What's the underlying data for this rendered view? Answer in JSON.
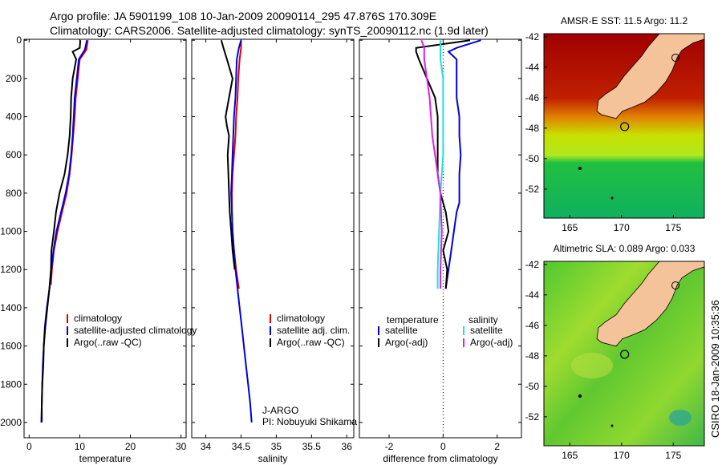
{
  "header": {
    "line1": "Argo profile: JA 5901199_108 10-Jan-2009 20090114_295 47.876S 170.309E",
    "line2": "Climatology: CARS2006. Satellite-adjusted climatology: synTS_20090112.nc (1.9d later)"
  },
  "side_label": "CSIRO 18-Jan-2009 10:35:36",
  "colors": {
    "red": "#e00000",
    "blue": "#0000e0",
    "black": "#000000",
    "cyan": "#20e0e0",
    "magenta": "#e020e0",
    "land": "#f5c39a"
  },
  "chart_data": [
    {
      "type": "line",
      "id": "temperature",
      "xlabel": "temperature",
      "xlim": [
        -1,
        31
      ],
      "xticks": [
        0,
        10,
        20,
        30
      ],
      "ylim": [
        2080,
        -5
      ],
      "yticks": [
        0,
        200,
        400,
        600,
        800,
        1000,
        1200,
        1400,
        1600,
        1800,
        2000
      ],
      "legend": [
        "climatology",
        "satellite-adjusted climatology",
        "Argo(..raw -QC)"
      ],
      "series": [
        {
          "name": "climatology",
          "color": "red",
          "points": [
            [
              11.6,
              0
            ],
            [
              11.3,
              50
            ],
            [
              10,
              100
            ],
            [
              9.6,
              200
            ],
            [
              9.2,
              300
            ],
            [
              9,
              400
            ],
            [
              8.7,
              500
            ],
            [
              8.4,
              600
            ],
            [
              8,
              700
            ],
            [
              7.4,
              800
            ],
            [
              6.5,
              900
            ],
            [
              5.6,
              1000
            ],
            [
              4.9,
              1100
            ],
            [
              4.5,
              1200
            ],
            [
              4.3,
              1280
            ]
          ]
        },
        {
          "name": "satellite-adjusted climatology",
          "color": "blue",
          "points": [
            [
              11.4,
              0
            ],
            [
              11,
              50
            ],
            [
              9.8,
              100
            ],
            [
              9.4,
              200
            ],
            [
              9,
              300
            ],
            [
              8.8,
              400
            ],
            [
              8.6,
              500
            ],
            [
              8.3,
              600
            ],
            [
              7.9,
              700
            ],
            [
              7.2,
              800
            ],
            [
              6.3,
              900
            ],
            [
              5.4,
              1000
            ],
            [
              4.8,
              1100
            ],
            [
              4.4,
              1200
            ],
            [
              4,
              1300
            ],
            [
              3.5,
              1400
            ],
            [
              3.1,
              1500
            ],
            [
              2.9,
              1600
            ],
            [
              2.7,
              1700
            ],
            [
              2.6,
              1800
            ],
            [
              2.5,
              1900
            ],
            [
              2.4,
              2000
            ]
          ]
        },
        {
          "name": "Argo(..raw -QC)",
          "color": "black",
          "points": [
            [
              10.1,
              0
            ],
            [
              10,
              40
            ],
            [
              8.6,
              60
            ],
            [
              9.3,
              100
            ],
            [
              8.6,
              200
            ],
            [
              8.3,
              300
            ],
            [
              8.2,
              400
            ],
            [
              8,
              500
            ],
            [
              7.6,
              600
            ],
            [
              7,
              700
            ],
            [
              6,
              800
            ],
            [
              5.3,
              900
            ],
            [
              4.9,
              1000
            ],
            [
              4.4,
              1100
            ],
            [
              4.3,
              1200
            ],
            [
              4,
              1300
            ],
            [
              3.6,
              1400
            ],
            [
              3.2,
              1500
            ],
            [
              2.9,
              1600
            ],
            [
              2.8,
              1700
            ],
            [
              2.6,
              1800
            ],
            [
              2.5,
              1900
            ],
            [
              2.5,
              2000
            ]
          ]
        }
      ]
    },
    {
      "type": "line",
      "id": "salinity",
      "xlabel": "salinity",
      "xlim": [
        33.8,
        36.1
      ],
      "xticks": [
        34,
        34.5,
        35,
        35.5,
        36
      ],
      "ylim": [
        2080,
        -5
      ],
      "yticks": [
        0,
        200,
        400,
        600,
        800,
        1000,
        1200,
        1400,
        1600,
        1800,
        2000
      ],
      "legend": [
        "climatology",
        "satellite adj. clim.",
        "Argo(..raw -QC)"
      ],
      "annotation": [
        "J-ARGO",
        "PI: Nobuyuki Shikama"
      ],
      "series": [
        {
          "name": "climatology",
          "color": "red",
          "points": [
            [
              34.5,
              0
            ],
            [
              34.5,
              40
            ],
            [
              34.48,
              100
            ],
            [
              34.46,
              200
            ],
            [
              34.45,
              300
            ],
            [
              34.43,
              400
            ],
            [
              34.42,
              500
            ],
            [
              34.4,
              600
            ],
            [
              34.38,
              700
            ],
            [
              34.37,
              800
            ],
            [
              34.37,
              900
            ],
            [
              34.38,
              1000
            ],
            [
              34.4,
              1100
            ],
            [
              34.43,
              1200
            ],
            [
              34.47,
              1300
            ]
          ]
        },
        {
          "name": "satellite adj. clim.",
          "color": "blue",
          "points": [
            [
              34.5,
              0
            ],
            [
              34.47,
              40
            ],
            [
              34.44,
              100
            ],
            [
              34.43,
              200
            ],
            [
              34.42,
              300
            ],
            [
              34.4,
              400
            ],
            [
              34.39,
              500
            ],
            [
              34.38,
              600
            ],
            [
              34.37,
              700
            ],
            [
              34.36,
              800
            ],
            [
              34.37,
              900
            ],
            [
              34.38,
              1000
            ],
            [
              34.4,
              1100
            ],
            [
              34.42,
              1200
            ],
            [
              34.45,
              1300
            ],
            [
              34.48,
              1400
            ],
            [
              34.51,
              1500
            ],
            [
              34.54,
              1600
            ],
            [
              34.57,
              1700
            ],
            [
              34.6,
              1800
            ],
            [
              34.63,
              1900
            ],
            [
              34.65,
              2000
            ]
          ]
        },
        {
          "name": "Argo(..raw -QC)",
          "color": "black",
          "points": [
            [
              34.22,
              0
            ],
            [
              34.25,
              40
            ],
            [
              34.3,
              100
            ],
            [
              34.34,
              150
            ],
            [
              34.38,
              200
            ],
            [
              34.33,
              300
            ],
            [
              34.28,
              400
            ],
            [
              34.3,
              450
            ],
            [
              34.33,
              500
            ],
            [
              34.31,
              600
            ],
            [
              34.32,
              700
            ],
            [
              34.33,
              800
            ],
            [
              34.34,
              900
            ],
            [
              34.36,
              1000
            ],
            [
              34.38,
              1100
            ],
            [
              34.41,
              1200
            ]
          ]
        }
      ]
    },
    {
      "type": "line",
      "id": "difference",
      "xlabel": "difference from climatology",
      "xlim": [
        -3.1,
        2.9
      ],
      "xticks": [
        -2,
        0,
        2
      ],
      "ylim": [
        2080,
        -5
      ],
      "yticks": [
        0,
        200,
        400,
        600,
        800,
        1000,
        1200,
        1400,
        1600,
        1800,
        2000
      ],
      "legend_headers": [
        "temperature",
        "salinity"
      ],
      "legend": [
        "satellite",
        "Argo(-adj)",
        "satellite",
        "Argo(-adj)"
      ],
      "series": [
        {
          "name": "satellite",
          "group": "temperature",
          "color": "blue",
          "points": [
            [
              1.4,
              0
            ],
            [
              0.5,
              40
            ],
            [
              0.2,
              60
            ],
            [
              0.5,
              100
            ],
            [
              0.5,
              300
            ],
            [
              0.6,
              400
            ],
            [
              0.6,
              500
            ],
            [
              0.65,
              600
            ],
            [
              0.6,
              700
            ],
            [
              0.6,
              800
            ],
            [
              0.6,
              850
            ],
            [
              0.5,
              900
            ],
            [
              0.4,
              1000
            ],
            [
              0.3,
              1100
            ],
            [
              0.2,
              1200
            ],
            [
              0.1,
              1300
            ]
          ]
        },
        {
          "name": "Argo(-adj)",
          "group": "temperature",
          "color": "black",
          "points": [
            [
              1,
              0
            ],
            [
              -1,
              40
            ],
            [
              -1,
              60
            ],
            [
              -0.9,
              100
            ],
            [
              -0.6,
              200
            ],
            [
              -0.3,
              300
            ],
            [
              -0.2,
              400
            ],
            [
              -0.2,
              500
            ],
            [
              -0.2,
              600
            ],
            [
              -0.2,
              700
            ],
            [
              -0.1,
              800
            ],
            [
              0.1,
              900
            ],
            [
              0.2,
              1000
            ],
            [
              0,
              1100
            ],
            [
              0.15,
              1200
            ],
            [
              0.1,
              1300
            ]
          ]
        },
        {
          "name": "satellite",
          "group": "salinity",
          "color": "cyan",
          "points": [
            [
              -0.1,
              0
            ],
            [
              -0.1,
              100
            ],
            [
              0,
              200
            ],
            [
              0,
              400
            ],
            [
              0,
              600
            ],
            [
              -0.1,
              800
            ],
            [
              -0.15,
              1000
            ],
            [
              -0.2,
              1200
            ],
            [
              -0.2,
              1300
            ]
          ]
        },
        {
          "name": "Argo(-adj)",
          "group": "salinity",
          "color": "magenta",
          "points": [
            [
              -0.8,
              0
            ],
            [
              -0.7,
              40
            ],
            [
              -0.7,
              100
            ],
            [
              -0.6,
              200
            ],
            [
              -0.5,
              300
            ],
            [
              -0.45,
              400
            ],
            [
              -0.4,
              500
            ],
            [
              -0.3,
              600
            ],
            [
              -0.2,
              700
            ],
            [
              -0.1,
              800
            ],
            [
              -0.05,
              1000
            ],
            [
              -0.1,
              1200
            ],
            [
              -0.1,
              1300
            ]
          ]
        }
      ]
    },
    {
      "type": "heatmap",
      "id": "sst",
      "title": "AMSR-E SST: 11.5 Argo: 11.2",
      "xticks": [
        165,
        170,
        175
      ],
      "yticks": [
        -42,
        -44,
        -46,
        -48,
        -50,
        -52
      ],
      "xlim": [
        162.5,
        178
      ],
      "ylim": [
        -53.9,
        -41.8
      ],
      "argo_marker": [
        170.3,
        -47.9
      ]
    },
    {
      "type": "heatmap",
      "id": "sla",
      "title": "Altimetric SLA: 0.089 Argo: 0.033",
      "xticks": [
        165,
        170,
        175
      ],
      "yticks": [
        -42,
        -44,
        -46,
        -48,
        -50,
        -52
      ],
      "xlim": [
        162.5,
        178
      ],
      "ylim": [
        -53.9,
        -41.8
      ],
      "argo_marker": [
        170.3,
        -47.9
      ]
    }
  ]
}
